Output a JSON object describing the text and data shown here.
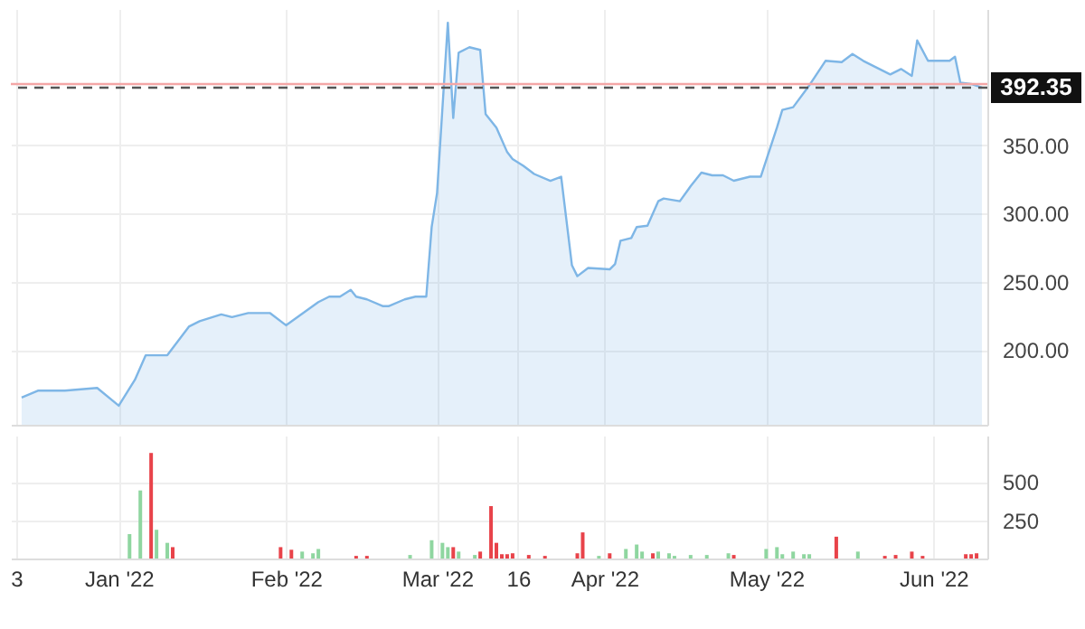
{
  "chart_data": [
    {
      "type": "area",
      "tick_labels": "y",
      "grid": true,
      "xlim": [
        "2021-12-12",
        "2022-06-11"
      ],
      "xticks": [
        {
          "value": "2021-12-13",
          "label": null
        },
        {
          "value": "2022-01-01",
          "label": null
        },
        {
          "value": "2022-02-01",
          "label": null
        },
        {
          "value": "2022-03-01",
          "label": null
        },
        {
          "value": "2022-03-16",
          "label": null
        },
        {
          "value": "2022-04-01",
          "label": null
        },
        {
          "value": "2022-05-01",
          "label": null
        },
        {
          "value": "2022-06-01",
          "label": null
        }
      ],
      "ylim": [
        145,
        450
      ],
      "yticks": [
        {
          "value": 200,
          "label": "200.00"
        },
        {
          "value": 250,
          "label": "250.00"
        },
        {
          "value": 300,
          "label": "300.00"
        },
        {
          "value": 350,
          "label": "350.00"
        }
      ],
      "ref_lines": [
        {
          "axis": "y",
          "value": 395,
          "color": "#f4a6a6",
          "line_style": "solid"
        },
        {
          "axis": "y",
          "value": 392.35,
          "label": "392.35",
          "color": "#555555",
          "line_style": "dashed"
        }
      ],
      "x": [
        "2021-12-14",
        "2021-12-17",
        "2021-12-22",
        "2021-12-28",
        "2022-01-01",
        "2022-01-04",
        "2022-01-06",
        "2022-01-10",
        "2022-01-14",
        "2022-01-16",
        "2022-01-20",
        "2022-01-22",
        "2022-01-25",
        "2022-01-29",
        "2022-02-01",
        "2022-02-07",
        "2022-02-09",
        "2022-02-11",
        "2022-02-13",
        "2022-02-14",
        "2022-02-16",
        "2022-02-19",
        "2022-02-20",
        "2022-02-23",
        "2022-02-25",
        "2022-02-27",
        "2022-02-28",
        "2022-03-01",
        "2022-03-03",
        "2022-03-04",
        "2022-03-05",
        "2022-03-07",
        "2022-03-09",
        "2022-03-10",
        "2022-03-12",
        "2022-03-14",
        "2022-03-15",
        "2022-03-17",
        "2022-03-19",
        "2022-03-22",
        "2022-03-24",
        "2022-03-26",
        "2022-03-27",
        "2022-03-29",
        "2022-04-02",
        "2022-04-03",
        "2022-04-04",
        "2022-04-06",
        "2022-04-07",
        "2022-04-09",
        "2022-04-11",
        "2022-04-12",
        "2022-04-15",
        "2022-04-17",
        "2022-04-19",
        "2022-04-21",
        "2022-04-23",
        "2022-04-25",
        "2022-04-28",
        "2022-04-30",
        "2022-05-03",
        "2022-05-04",
        "2022-05-06",
        "2022-05-09",
        "2022-05-12",
        "2022-05-15",
        "2022-05-17",
        "2022-05-19",
        "2022-05-22",
        "2022-05-24",
        "2022-05-26",
        "2022-05-28",
        "2022-05-29",
        "2022-05-31",
        "2022-06-04",
        "2022-06-05",
        "2022-06-06",
        "2022-06-08",
        "2022-06-10"
      ],
      "series": [
        {
          "color": "#7eb6e6",
          "values": [
            165,
            170,
            170,
            172,
            159,
            178,
            196,
            196,
            217,
            221,
            226,
            224,
            227,
            227,
            218,
            235,
            239,
            239,
            244,
            239,
            237,
            232,
            232,
            237,
            239,
            239,
            290,
            315,
            440,
            370,
            418,
            422,
            420,
            373,
            363,
            345,
            340,
            335,
            329,
            324,
            327,
            262,
            254,
            260,
            259,
            263,
            280,
            282,
            290,
            291,
            309,
            311,
            309,
            320,
            330,
            328,
            328,
            324,
            327,
            327,
            363,
            376,
            378,
            394,
            412,
            411,
            417,
            412,
            406,
            402,
            406,
            401,
            427,
            412,
            412,
            415,
            396,
            395,
            392.35
          ]
        }
      ]
    },
    {
      "type": "bar",
      "grid": true,
      "xlim": [
        "2021-12-12",
        "2022-06-11"
      ],
      "xticks": [
        {
          "value": "2021-12-13",
          "label": "3"
        },
        {
          "value": "2022-01-01",
          "label": "Jan '22"
        },
        {
          "value": "2022-02-01",
          "label": "Feb '22"
        },
        {
          "value": "2022-03-01",
          "label": "Mar '22"
        },
        {
          "value": "2022-03-16",
          "label": "16"
        },
        {
          "value": "2022-04-01",
          "label": "Apr '22"
        },
        {
          "value": "2022-05-01",
          "label": "May '22"
        },
        {
          "value": "2022-06-01",
          "label": "Jun '22"
        }
      ],
      "ylim": [
        0,
        800
      ],
      "yticks": [
        250,
        500
      ],
      "x": [
        "2022-01-03",
        "2022-01-05",
        "2022-01-07",
        "2022-01-08",
        "2022-01-10",
        "2022-01-11",
        "2022-01-31",
        "2022-02-02",
        "2022-02-04",
        "2022-02-06",
        "2022-02-07",
        "2022-02-14",
        "2022-02-16",
        "2022-02-24",
        "2022-02-28",
        "2022-03-02",
        "2022-03-03",
        "2022-03-04",
        "2022-03-05",
        "2022-03-08",
        "2022-03-09",
        "2022-03-11",
        "2022-03-12",
        "2022-03-13",
        "2022-03-14",
        "2022-03-15",
        "2022-03-18",
        "2022-03-21",
        "2022-03-27",
        "2022-03-28",
        "2022-03-31",
        "2022-04-02",
        "2022-04-05",
        "2022-04-07",
        "2022-04-08",
        "2022-04-10",
        "2022-04-11",
        "2022-04-13",
        "2022-04-14",
        "2022-04-17",
        "2022-04-20",
        "2022-04-24",
        "2022-04-25",
        "2022-05-01",
        "2022-05-03",
        "2022-05-04",
        "2022-05-06",
        "2022-05-08",
        "2022-05-09",
        "2022-05-14",
        "2022-05-18",
        "2022-05-23",
        "2022-05-25",
        "2022-05-28",
        "2022-05-30",
        "2022-06-07",
        "2022-06-08",
        "2022-06-09"
      ],
      "values": [
        159,
        443,
        687,
        187,
        102,
        74,
        74,
        57,
        45,
        34,
        62,
        17,
        17,
        23,
        119,
        102,
        74,
        74,
        45,
        23,
        45,
        341,
        102,
        28,
        28,
        34,
        23,
        17,
        34,
        170,
        17,
        34,
        62,
        91,
        45,
        34,
        45,
        34,
        17,
        23,
        23,
        34,
        23,
        62,
        74,
        28,
        45,
        28,
        28,
        142,
        45,
        17,
        23,
        45,
        17,
        28,
        28,
        34
      ],
      "colors": [
        "#8fd6a0",
        "#8fd6a0",
        "#e8434a",
        "#8fd6a0",
        "#8fd6a0",
        "#e8434a",
        "#e8434a",
        "#e8434a",
        "#8fd6a0",
        "#8fd6a0",
        "#8fd6a0",
        "#e8434a",
        "#e8434a",
        "#8fd6a0",
        "#8fd6a0",
        "#8fd6a0",
        "#8fd6a0",
        "#e8434a",
        "#8fd6a0",
        "#8fd6a0",
        "#e8434a",
        "#e8434a",
        "#e8434a",
        "#e8434a",
        "#e8434a",
        "#e8434a",
        "#e8434a",
        "#e8434a",
        "#e8434a",
        "#e8434a",
        "#8fd6a0",
        "#e8434a",
        "#8fd6a0",
        "#8fd6a0",
        "#8fd6a0",
        "#e8434a",
        "#8fd6a0",
        "#8fd6a0",
        "#8fd6a0",
        "#8fd6a0",
        "#8fd6a0",
        "#8fd6a0",
        "#e8434a",
        "#8fd6a0",
        "#8fd6a0",
        "#8fd6a0",
        "#8fd6a0",
        "#8fd6a0",
        "#8fd6a0",
        "#e8434a",
        "#8fd6a0",
        "#e8434a",
        "#e8434a",
        "#e8434a",
        "#e8434a",
        "#e8434a",
        "#e8434a",
        "#e8434a"
      ]
    }
  ]
}
